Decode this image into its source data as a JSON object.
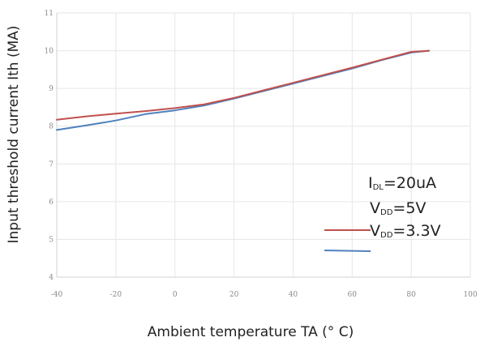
{
  "chart_data": {
    "type": "line",
    "xlabel": "Ambient temperature TA (° C)",
    "ylabel": "Input threshold current Ith (MA)",
    "xlim": [
      -40,
      100
    ],
    "ylim": [
      4,
      11
    ],
    "x_ticks": [
      -40,
      -20,
      0,
      20,
      40,
      60,
      80,
      100
    ],
    "y_ticks": [
      4,
      5,
      6,
      7,
      8,
      9,
      10,
      11
    ],
    "grid": true,
    "legend_position": "bottom-right",
    "annotation": {
      "i_main": "I",
      "i_sub": "DL",
      "i_rest": "=20uA"
    },
    "legend": [
      {
        "main": "V",
        "sub": "DD",
        "rest": "=5V",
        "color": "#c0504d"
      },
      {
        "main": "V",
        "sub": "DD",
        "rest": "=3.3V",
        "color": "#4f81bd"
      }
    ],
    "series": [
      {
        "color": "#4f81bd",
        "x": [
          -40,
          -30,
          -20,
          -10,
          0,
          10,
          20,
          30,
          40,
          50,
          60,
          70,
          80,
          86
        ],
        "y": [
          7.9,
          8.02,
          8.15,
          8.32,
          8.42,
          8.55,
          8.73,
          8.93,
          9.13,
          9.33,
          9.53,
          9.75,
          9.95,
          10.0
        ]
      },
      {
        "color": "#c0504d",
        "x": [
          -40,
          -30,
          -20,
          -10,
          0,
          10,
          20,
          30,
          40,
          50,
          60,
          70,
          80,
          86
        ],
        "y": [
          8.17,
          8.26,
          8.33,
          8.4,
          8.48,
          8.58,
          8.75,
          8.95,
          9.15,
          9.35,
          9.55,
          9.76,
          9.97,
          10.0
        ]
      }
    ]
  }
}
